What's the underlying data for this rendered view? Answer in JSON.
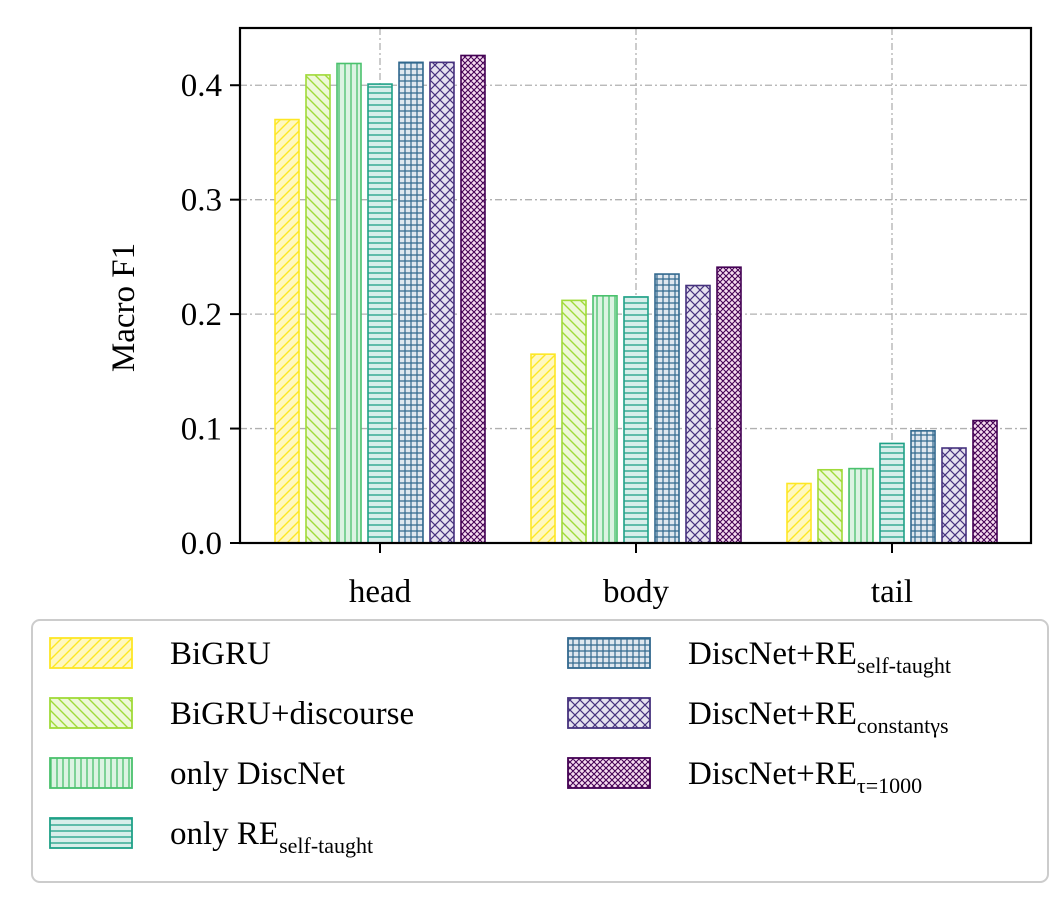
{
  "chart_data": {
    "type": "bar",
    "title": "",
    "xlabel": "",
    "ylabel": "Macro F1",
    "ylim": [
      0,
      0.45
    ],
    "yticks": [
      {
        "value": 0.0,
        "label": "0.0"
      },
      {
        "value": 0.1,
        "label": "0.1"
      },
      {
        "value": 0.2,
        "label": "0.2"
      },
      {
        "value": 0.3,
        "label": "0.3"
      },
      {
        "value": 0.4,
        "label": "0.4"
      }
    ],
    "grid": true,
    "legend_position": "bottom",
    "categories": [
      "head",
      "body",
      "tail"
    ],
    "series": [
      {
        "name": "BiGRU",
        "sub": "",
        "values": [
          0.37,
          0.165,
          0.052
        ],
        "color": "#fde725",
        "fill": "#fff8c0",
        "pattern": "diag-right"
      },
      {
        "name": "BiGRU+discourse",
        "sub": "",
        "values": [
          0.409,
          0.212,
          0.064
        ],
        "color": "#a0da39",
        "fill": "#eef8d8",
        "pattern": "diag-left"
      },
      {
        "name": "only DiscNet",
        "sub": "",
        "values": [
          0.419,
          0.216,
          0.065
        ],
        "color": "#4ac16d",
        "fill": "#dcf3e2",
        "pattern": "vertical"
      },
      {
        "name": "only RE",
        "sub": "self-taught",
        "values": [
          0.401,
          0.215,
          0.087
        ],
        "color": "#1fa187",
        "fill": "#d8eeea",
        "pattern": "horizontal"
      },
      {
        "name": "DiscNet+RE",
        "sub": "self-taught",
        "values": [
          0.42,
          0.235,
          0.098
        ],
        "color": "#31688e",
        "fill": "#dfe7ef",
        "pattern": "grid"
      },
      {
        "name": "DiscNet+RE",
        "sub": "constantγs",
        "values": [
          0.42,
          0.225,
          0.083
        ],
        "color": "#46327e",
        "fill": "#e6e2ef",
        "pattern": "cross"
      },
      {
        "name": "DiscNet+RE",
        "sub": "τ=1000",
        "values": [
          0.426,
          0.241,
          0.107
        ],
        "color": "#440154",
        "fill": "#f6dcef",
        "pattern": "dense-diag"
      }
    ]
  }
}
